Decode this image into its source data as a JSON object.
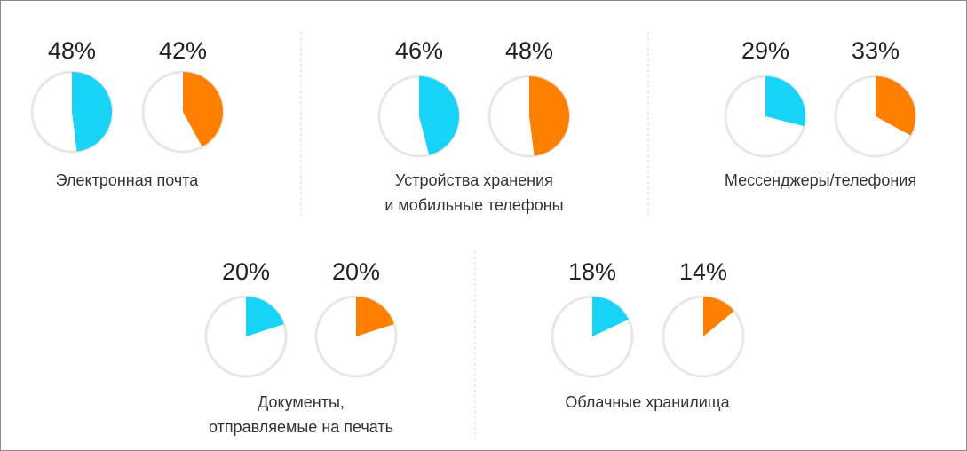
{
  "chart_data": {
    "type": "pie",
    "title": "",
    "series_colors": [
      "#17D4F7",
      "#FF7F00"
    ],
    "groups": [
      {
        "label_lines": [
          "Электронная почта"
        ],
        "values": [
          48,
          42
        ],
        "value_labels": [
          "48%",
          "42%"
        ]
      },
      {
        "label_lines": [
          "Устройства хранения",
          "и мобильные телефоны"
        ],
        "values": [
          46,
          48
        ],
        "value_labels": [
          "46%",
          "48%"
        ]
      },
      {
        "label_lines": [
          "Мессенджеры/телефония"
        ],
        "values": [
          29,
          33
        ],
        "value_labels": [
          "29%",
          "33%"
        ]
      },
      {
        "label_lines": [
          "Документы,",
          "отправляемые на печать"
        ],
        "values": [
          20,
          20
        ],
        "value_labels": [
          "20%",
          "20%"
        ]
      },
      {
        "label_lines": [
          "Облачные хранилища"
        ],
        "values": [
          18,
          14
        ],
        "value_labels": [
          "18%",
          "14%"
        ]
      }
    ]
  }
}
